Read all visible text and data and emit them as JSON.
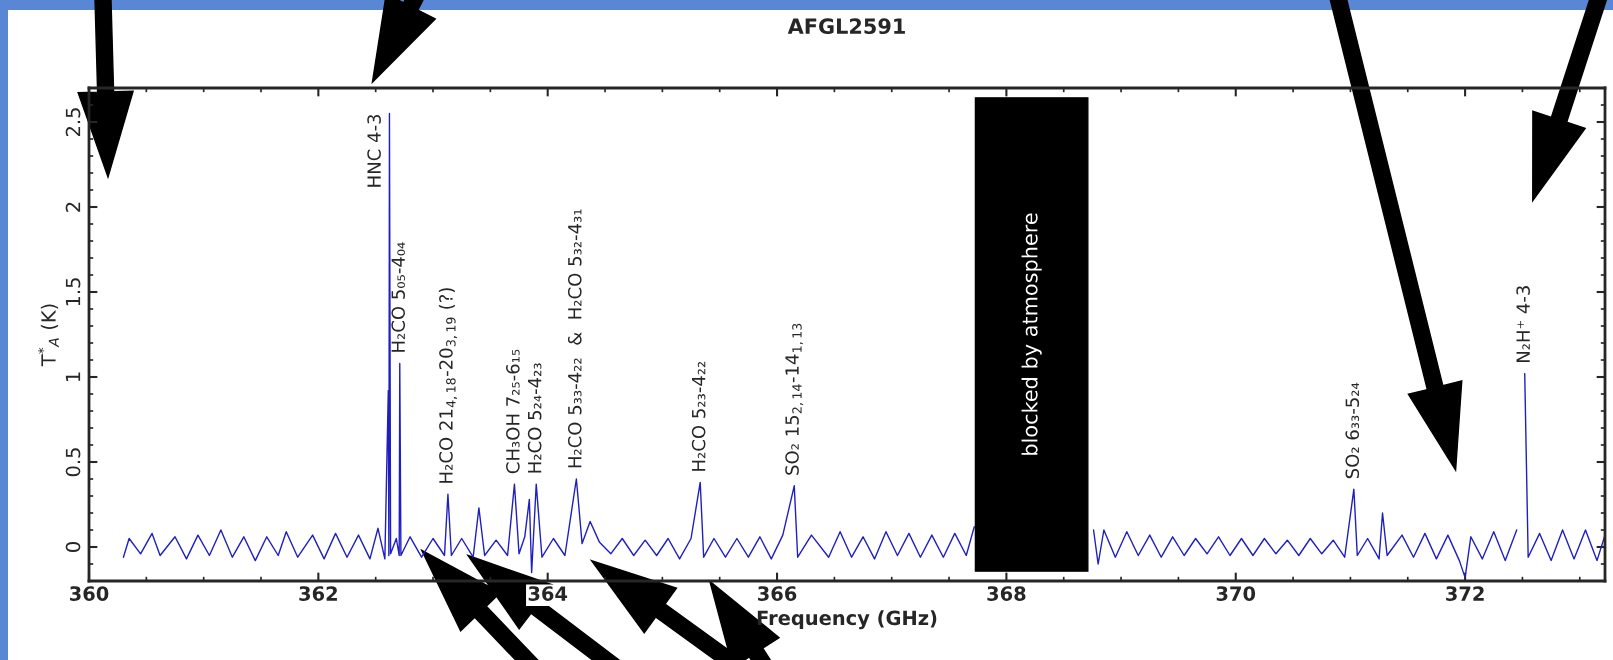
{
  "chart_data": {
    "type": "line",
    "title": "AFGL2591",
    "xlabel": "Frequency (GHz)",
    "ylabel": "T$^{*}$$_{A}$ (K)",
    "xlim": [
      360,
      373.22
    ],
    "xticks": [
      360,
      362,
      364,
      366,
      368,
      370,
      372
    ],
    "ylim": [
      -0.2,
      2.7
    ],
    "yticks": [
      0,
      0.5,
      1,
      1.5,
      2,
      2.5
    ],
    "series": [
      {
        "color": "#1f1fbf",
        "x": [
          360.3,
          360.35,
          360.45,
          360.55,
          360.62,
          360.75,
          360.85,
          360.95,
          361.05,
          361.15,
          361.25,
          361.35,
          361.45,
          361.55,
          361.65,
          361.72,
          361.82,
          361.95,
          362.05,
          362.15,
          362.25,
          362.35,
          362.45,
          362.52,
          362.58,
          362.61,
          362.615,
          362.62,
          362.63,
          362.68,
          362.705,
          362.71,
          362.72,
          362.8,
          362.9,
          363.0,
          363.1,
          363.13,
          363.16,
          363.25,
          363.35,
          363.4,
          363.45,
          363.55,
          363.65,
          363.71,
          363.75,
          363.8,
          363.84,
          363.86,
          363.9,
          363.95,
          364.05,
          364.15,
          364.25,
          364.3,
          364.37,
          364.45,
          364.55,
          364.65,
          364.75,
          364.85,
          364.95,
          365.05,
          365.15,
          365.25,
          365.33,
          365.36,
          365.45,
          365.55,
          365.65,
          365.75,
          365.85,
          365.95,
          366.05,
          366.15,
          366.18,
          366.3,
          366.45,
          366.55,
          366.65,
          366.75,
          366.85,
          366.95,
          367.05,
          367.15,
          367.25,
          367.35,
          367.45,
          367.55,
          367.65,
          367.72,
          368.2,
          368.74,
          368.76,
          368.8,
          368.85,
          368.95,
          369.05,
          369.15,
          369.25,
          369.35,
          369.45,
          369.55,
          369.65,
          369.75,
          369.85,
          369.95,
          370.05,
          370.15,
          370.25,
          370.35,
          370.45,
          370.55,
          370.65,
          370.75,
          370.85,
          370.95,
          371.03,
          371.06,
          371.15,
          371.25,
          371.28,
          371.32,
          371.45,
          371.55,
          371.65,
          371.75,
          371.85,
          371.95,
          372.0,
          372.05,
          372.15,
          372.25,
          372.35,
          372.45,
          372.5,
          372.52,
          372.55,
          372.65,
          372.75,
          372.85,
          372.95,
          373.05,
          373.15,
          373.22
        ],
        "values": [
          -0.06,
          0.05,
          -0.04,
          0.08,
          -0.05,
          0.06,
          -0.07,
          0.07,
          -0.05,
          0.1,
          -0.06,
          0.06,
          -0.08,
          0.06,
          -0.05,
          0.09,
          -0.06,
          0.07,
          -0.07,
          0.08,
          -0.06,
          0.07,
          -0.07,
          0.11,
          -0.07,
          0.92,
          -0.05,
          2.55,
          -0.04,
          0.05,
          -0.05,
          1.08,
          -0.05,
          0.06,
          -0.06,
          0.05,
          -0.05,
          0.31,
          -0.05,
          0.05,
          -0.06,
          0.23,
          -0.05,
          0.04,
          -0.05,
          0.37,
          -0.04,
          0.06,
          0.28,
          -0.15,
          0.37,
          -0.06,
          0.05,
          -0.05,
          0.4,
          0.02,
          0.15,
          0.03,
          -0.04,
          0.05,
          -0.05,
          0.04,
          -0.05,
          0.05,
          -0.07,
          0.05,
          0.38,
          -0.06,
          0.05,
          -0.06,
          0.05,
          -0.06,
          0.06,
          -0.07,
          0.07,
          0.36,
          -0.06,
          0.07,
          -0.06,
          0.09,
          -0.06,
          0.06,
          -0.07,
          0.09,
          -0.05,
          0.08,
          -0.06,
          0.07,
          -0.06,
          0.08,
          -0.05,
          0.12,
          null,
          null,
          0.1,
          -0.1,
          0.1,
          -0.06,
          0.09,
          -0.05,
          0.07,
          -0.06,
          0.06,
          -0.05,
          0.05,
          -0.04,
          0.06,
          -0.05,
          0.05,
          -0.05,
          0.05,
          -0.04,
          0.04,
          -0.05,
          0.05,
          -0.04,
          0.04,
          -0.06,
          0.34,
          -0.05,
          0.05,
          -0.07,
          0.2,
          -0.05,
          0.07,
          -0.06,
          0.08,
          -0.07,
          0.07,
          -0.08,
          -0.18,
          0.06,
          -0.07,
          0.09,
          -0.08,
          0.1,
          null,
          1.02,
          -0.06,
          0.08,
          -0.08,
          0.1,
          -0.07,
          0.1,
          -0.08,
          0.07
        ]
      }
    ],
    "bands": [
      {
        "axis": "x",
        "from": 367.73,
        "to": 368.71,
        "label": "blocked by atmosphere",
        "color": "#000000"
      }
    ],
    "annotations": [
      {
        "text": "HNC 4-3",
        "x": 362.62,
        "y": 2.55
      },
      {
        "text": "H₂CO 5₀₅-4₀₄",
        "x": 362.71,
        "y": 1.08
      },
      {
        "text": "H₂CO 21$_{4,18}$-20$_{3,19}$ (?)",
        "x": 363.13,
        "y": 0.31
      },
      {
        "text": "CH₃OH 7₂₅-6₁₅",
        "x": 363.71,
        "y": 0.37
      },
      {
        "text": "H₂CO 5₂₄-4₂₃",
        "x": 363.9,
        "y": 0.37
      },
      {
        "text": "H₂CO 5₃₃-4₂₂  &  H₂CO 5₃₂-4₃₁",
        "x": 364.25,
        "y": 0.4
      },
      {
        "text": "H₂CO 5₂₃-4₂₂",
        "x": 365.33,
        "y": 0.38
      },
      {
        "text": "SO₂ 15$_{2,14}$-14$_{1,13}$",
        "x": 366.15,
        "y": 0.36
      },
      {
        "text": "SO₂ 6₃₃-5₂₄",
        "x": 371.03,
        "y": 0.34
      },
      {
        "text": "N₂H⁺ 4-3",
        "x": 372.52,
        "y": 1.02
      }
    ]
  }
}
